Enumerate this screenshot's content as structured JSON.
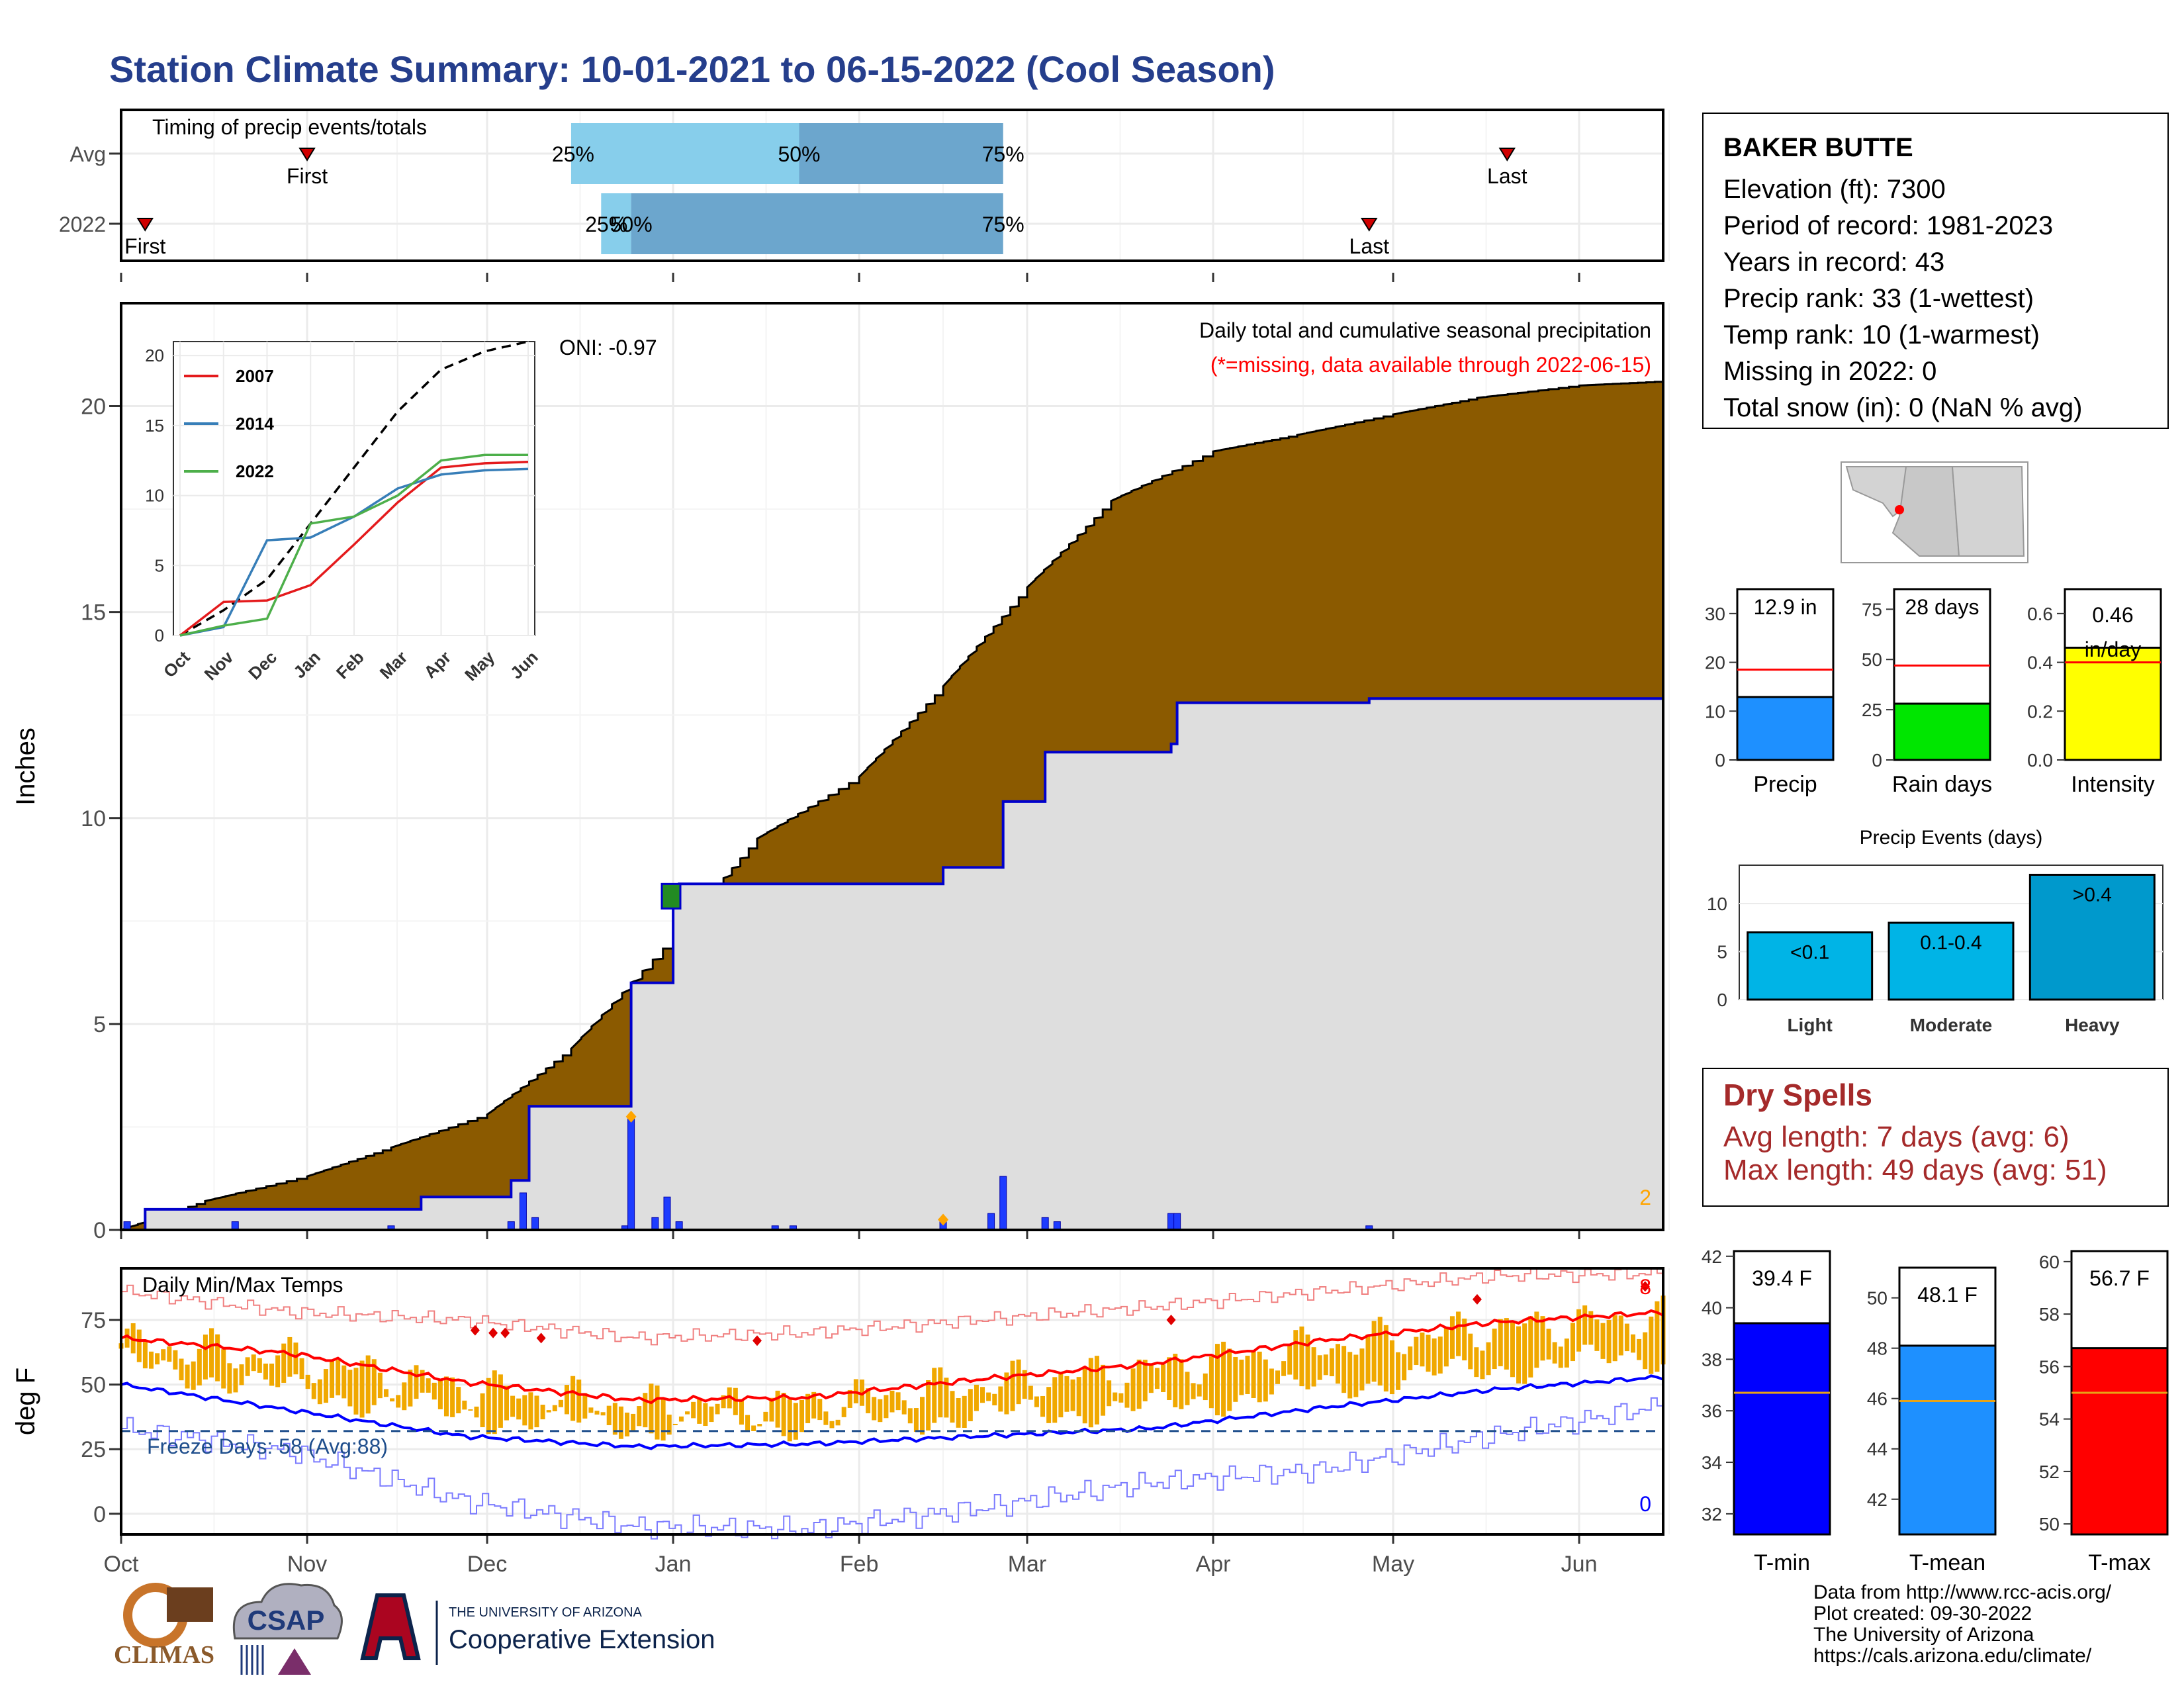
{
  "title": "Station Climate Summary: 10-01-2021 to 06-15-2022 (Cool Season)",
  "colors": {
    "title": "#253E8C",
    "cum_avg_fill": "#8B5A00",
    "cum_2022_fill": "#DEDEDE",
    "cum_2022_line": "#0000CC",
    "daily_bar": "#1E3CFF",
    "tmin": "#0000FF",
    "tmean": "#1E90FF",
    "tmax": "#FF0000",
    "precip": "#1E90FF",
    "raindays": "#00E600",
    "intensity": "#FFFF00",
    "temp_bar": "#F0A800",
    "events": "#00B4E6"
  },
  "timing_panel": {
    "title": "Timing of precip events/totals",
    "rows": [
      "Avg",
      "2022"
    ],
    "avg": {
      "first": "First",
      "last": "Last",
      "p25": "25%",
      "p50": "50%",
      "p75": "75%"
    },
    "y2022": {
      "first": "First",
      "last": "Last",
      "p25": "25%",
      "p50": "50%",
      "p75": "75%"
    }
  },
  "precip_panel": {
    "ylabel": "Inches",
    "subtitle": "Daily total and cumulative seasonal precipitation",
    "missing_note": "(*=missing, data available through 2022-06-15)",
    "oni": "ONI: -0.97",
    "missing_count": "2",
    "yticks": [
      "0",
      "5",
      "10",
      "15",
      "20"
    ]
  },
  "inset": {
    "legend": [
      "2007",
      "2014",
      "2022"
    ],
    "xticks": [
      "Oct",
      "Nov",
      "Dec",
      "Jan",
      "Feb",
      "Mar",
      "Apr",
      "May",
      "Jun"
    ],
    "yticks": [
      "0",
      "5",
      "10",
      "15",
      "20"
    ]
  },
  "temp_panel": {
    "title": "Daily Min/Max Temps",
    "ylabel": "deg F",
    "freeze_label": "Freeze Days: 58 (Avg:88)",
    "hot_count": "8",
    "cold_count": "0",
    "yticks": [
      "0",
      "25",
      "50",
      "75"
    ]
  },
  "month_labels": [
    "Oct",
    "Nov",
    "Dec",
    "Jan",
    "Feb",
    "Mar",
    "Apr",
    "May",
    "Jun"
  ],
  "station": {
    "name": "BAKER BUTTE",
    "lines": [
      "Elevation (ft): 7300",
      "Period of record: 1981-2023",
      "Years in record: 43",
      "Precip rank: 33 (1-wettest)",
      "Temp rank: 10 (1-warmest)",
      "Missing in 2022: 0",
      "Total snow (in): 0 (NaN % avg)"
    ]
  },
  "mini_bars": [
    {
      "label": "Precip",
      "value_text": "12.9 in",
      "yticks": [
        "0",
        "10",
        "20",
        "30"
      ]
    },
    {
      "label": "Rain days",
      "value_text": "28 days",
      "yticks": [
        "0",
        "25",
        "50",
        "75"
      ]
    },
    {
      "label": "Intensity",
      "value_text": "0.46 in/day",
      "yticks": [
        "0.0",
        "0.2",
        "0.4",
        "0.6"
      ]
    }
  ],
  "events_panel": {
    "title": "Precip Events (days)",
    "categories": [
      "Light",
      "Moderate",
      "Heavy"
    ],
    "bar_labels": [
      "<0.1",
      "0.1-0.4",
      ">0.4"
    ],
    "yticks": [
      "0",
      "5",
      "10"
    ]
  },
  "dry_spells": {
    "title": "Dry Spells",
    "avg_line": "Avg length: 7 days (avg: 6)",
    "max_line": "Max length: 49 days (avg: 51)"
  },
  "temp_bars": [
    {
      "label": "T-min",
      "value_text": "39.4 F",
      "yticks": [
        "32",
        "34",
        "36",
        "38",
        "40",
        "42"
      ]
    },
    {
      "label": "T-mean",
      "value_text": "48.1 F",
      "yticks": [
        "42",
        "44",
        "46",
        "48",
        "50"
      ]
    },
    {
      "label": "T-max",
      "value_text": "56.7 F",
      "yticks": [
        "50",
        "52",
        "54",
        "56",
        "58",
        "60"
      ]
    }
  ],
  "credits": [
    "Data from http://www.rcc-acis.org/",
    "Plot created: 09-30-2022",
    "The University of Arizona",
    "https://cals.arizona.edu/climate/"
  ],
  "logos": {
    "climas": "CLIMAS",
    "csap": "CSAP",
    "ua_small": "THE UNIVERSITY OF ARIZONA",
    "ua_big": "Cooperative Extension"
  },
  "chart_data": [
    {
      "type": "bar",
      "title": "Timing of precip events/totals",
      "categories": [
        "Avg",
        "2022"
      ],
      "series": [
        {
          "name": "First",
          "values": [
            "2021-11-01",
            "2021-10-05"
          ]
        },
        {
          "name": "25%",
          "values": [
            "2021-12-15",
            "2021-12-20"
          ]
        },
        {
          "name": "50%",
          "values": [
            "2022-01-22",
            "2021-12-25"
          ]
        },
        {
          "name": "75%",
          "values": [
            "2022-02-25",
            "2022-02-25"
          ]
        },
        {
          "name": "Last",
          "values": [
            "2022-05-20",
            "2022-04-27"
          ]
        }
      ]
    },
    {
      "type": "area",
      "title": "Daily total and cumulative seasonal precipitation",
      "ylabel": "Inches",
      "ylim": [
        0,
        22.5
      ],
      "x_range": [
        "2021-10-01",
        "2022-06-15"
      ],
      "series": [
        {
          "name": "avg_cumulative",
          "x": [
            "2021-10-01",
            "2021-10-15",
            "2021-11-01",
            "2021-11-15",
            "2021-12-01",
            "2021-12-15",
            "2022-01-01",
            "2022-01-15",
            "2022-02-01",
            "2022-02-15",
            "2022-03-01",
            "2022-03-15",
            "2022-04-01",
            "2022-04-15",
            "2022-05-01",
            "2022-05-15",
            "2022-06-01",
            "2022-06-15"
          ],
          "values": [
            0.0,
            0.7,
            1.3,
            2.0,
            2.8,
            4.4,
            7.1,
            9.5,
            11.0,
            13.2,
            15.6,
            17.7,
            18.9,
            19.3,
            19.8,
            20.2,
            20.5,
            20.6
          ]
        },
        {
          "name": "2022_cumulative",
          "x": [
            "2021-10-01",
            "2021-10-05",
            "2021-11-20",
            "2021-12-05",
            "2021-12-08",
            "2021-12-24",
            "2021-12-25",
            "2022-01-01",
            "2022-01-02",
            "2022-01-05",
            "2022-02-15",
            "2022-02-25",
            "2022-03-01",
            "2022-03-04",
            "2022-03-25",
            "2022-03-26",
            "2022-04-27",
            "2022-06-15"
          ],
          "values": [
            0.0,
            0.5,
            0.8,
            1.2,
            3.0,
            3.0,
            6.0,
            8.2,
            8.4,
            8.4,
            8.8,
            10.4,
            10.4,
            11.6,
            11.8,
            12.8,
            12.9,
            12.9
          ]
        },
        {
          "name": "daily_precip_2022",
          "x": [
            "2021-10-02",
            "2021-10-20",
            "2021-11-15",
            "2021-12-05",
            "2021-12-07",
            "2021-12-09",
            "2021-12-24",
            "2021-12-25",
            "2021-12-29",
            "2021-12-31",
            "2022-01-02",
            "2022-01-18",
            "2022-01-21",
            "2022-02-15",
            "2022-02-23",
            "2022-02-25",
            "2022-03-04",
            "2022-03-06",
            "2022-03-25",
            "2022-03-26",
            "2022-04-27"
          ],
          "values": [
            0.2,
            0.2,
            0.1,
            0.2,
            0.9,
            0.3,
            0.1,
            2.7,
            0.3,
            0.8,
            0.2,
            0.1,
            0.1,
            0.2,
            0.4,
            1.3,
            0.3,
            0.2,
            0.4,
            0.4,
            0.1
          ]
        }
      ]
    },
    {
      "type": "line",
      "title": "",
      "ylim": [
        0,
        21
      ],
      "x": [
        "Oct",
        "Nov",
        "Dec",
        "Jan",
        "Feb",
        "Mar",
        "Apr",
        "May",
        "Jun"
      ],
      "series": [
        {
          "name": "avg",
          "values": [
            0.0,
            1.8,
            4.0,
            8.0,
            12.0,
            16.0,
            19.0,
            20.3,
            21.0
          ]
        },
        {
          "name": "2007",
          "values": [
            0.0,
            2.4,
            2.5,
            3.6,
            6.5,
            9.5,
            12.0,
            12.3,
            12.4
          ]
        },
        {
          "name": "2014",
          "values": [
            0.0,
            0.6,
            6.8,
            7.0,
            8.5,
            10.5,
            11.5,
            11.8,
            11.9
          ]
        },
        {
          "name": "2022",
          "values": [
            0.0,
            0.7,
            1.2,
            8.0,
            8.5,
            10.0,
            12.5,
            12.9,
            12.9
          ]
        }
      ]
    },
    {
      "type": "line",
      "title": "Daily Min/Max Temps",
      "ylabel": "deg F",
      "ylim": [
        -8,
        95
      ],
      "x": [
        "Oct",
        "Nov",
        "Dec",
        "Jan",
        "Feb",
        "Mar",
        "Apr",
        "May",
        "Jun",
        "Jun-15"
      ],
      "series": [
        {
          "name": "avg_max",
          "values": [
            68,
            62,
            51,
            44,
            45,
            52,
            58,
            67,
            74,
            78
          ]
        },
        {
          "name": "avg_min",
          "values": [
            50,
            40,
            30,
            26,
            27,
            30,
            33,
            41,
            48,
            53
          ]
        },
        {
          "name": "record_high",
          "values": [
            86,
            78,
            75,
            68,
            70,
            75,
            80,
            86,
            92,
            93
          ]
        },
        {
          "name": "record_low",
          "values": [
            33,
            24,
            5,
            -5,
            -6,
            2,
            12,
            17,
            30,
            42
          ]
        },
        {
          "name": "freeze_line",
          "values": [
            32,
            32,
            32,
            32,
            32,
            32,
            32,
            32,
            32,
            32
          ]
        }
      ]
    },
    {
      "type": "bar",
      "categories": [
        "Precip"
      ],
      "values": [
        12.9
      ],
      "avg": 18.5,
      "ylim": [
        0,
        35
      ]
    },
    {
      "type": "bar",
      "categories": [
        "Rain days"
      ],
      "values": [
        28
      ],
      "avg": 47,
      "ylim": [
        0,
        85
      ]
    },
    {
      "type": "bar",
      "categories": [
        "Intensity"
      ],
      "values": [
        0.46
      ],
      "avg": 0.4,
      "ylim": [
        0,
        0.7
      ]
    },
    {
      "type": "bar",
      "title": "Precip Events (days)",
      "categories": [
        "Light",
        "Moderate",
        "Heavy"
      ],
      "values": [
        7,
        8,
        13
      ],
      "ylim": [
        0,
        14
      ]
    },
    {
      "type": "bar",
      "categories": [
        "T-min"
      ],
      "values": [
        39.4
      ],
      "avg": 36.7,
      "ylim": [
        31.2,
        42.2
      ]
    },
    {
      "type": "bar",
      "categories": [
        "T-mean"
      ],
      "values": [
        48.1
      ],
      "avg": 45.9,
      "ylim": [
        40.6,
        51.2
      ]
    },
    {
      "type": "bar",
      "categories": [
        "T-max"
      ],
      "values": [
        56.7
      ],
      "avg": 55.0,
      "ylim": [
        49.6,
        60.4
      ]
    }
  ]
}
